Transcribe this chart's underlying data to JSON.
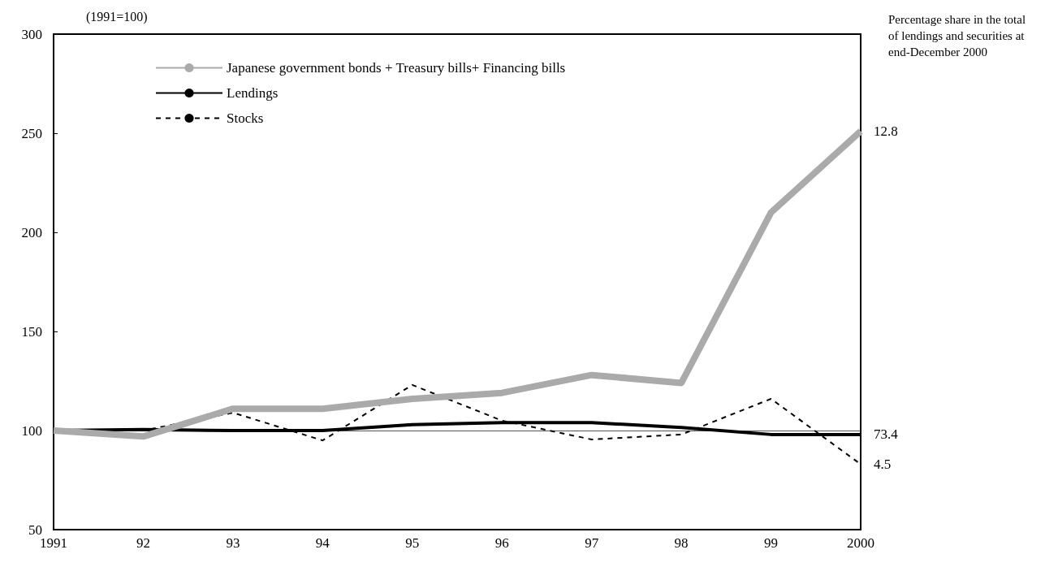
{
  "chart_data": {
    "type": "line",
    "ylabel": "(1991=100)",
    "categories": [
      "1991",
      "92",
      "93",
      "94",
      "95",
      "96",
      "97",
      "98",
      "99",
      "2000"
    ],
    "series": [
      {
        "name": "Japanese government bonds + Treasury bills+ Financing bills",
        "color": "#aaaaaa",
        "line_style": "solid",
        "values": [
          100,
          97,
          111,
          111,
          116,
          119,
          128,
          124,
          210,
          251
        ]
      },
      {
        "name": "Lendings",
        "color": "#000000",
        "line_style": "solid",
        "values": [
          100,
          100.5,
          100,
          100,
          103,
          104,
          104,
          101.5,
          98,
          98
        ]
      },
      {
        "name": "Stocks",
        "color": "#000000",
        "line_style": "dashed",
        "values": [
          100,
          100,
          109,
          95,
          123,
          105,
          95.5,
          98,
          116,
          83
        ]
      }
    ],
    "ylim": [
      50,
      300
    ],
    "yticks": [
      50,
      100,
      150,
      200,
      250,
      300
    ],
    "ref_lines": [
      {
        "axis": "y",
        "value": 100,
        "color": "#555555"
      }
    ],
    "annotations": [
      "Percentage share in the total of lendings and securities at end-December 2000",
      {
        "text": "12.8",
        "x": "2000",
        "y": 251
      },
      {
        "text": "73.4",
        "x": "2000",
        "y": 98
      },
      {
        "text": "4.5",
        "x": "2000",
        "y": 83
      }
    ],
    "grid": false,
    "legend": "top left",
    "marker": "none"
  }
}
